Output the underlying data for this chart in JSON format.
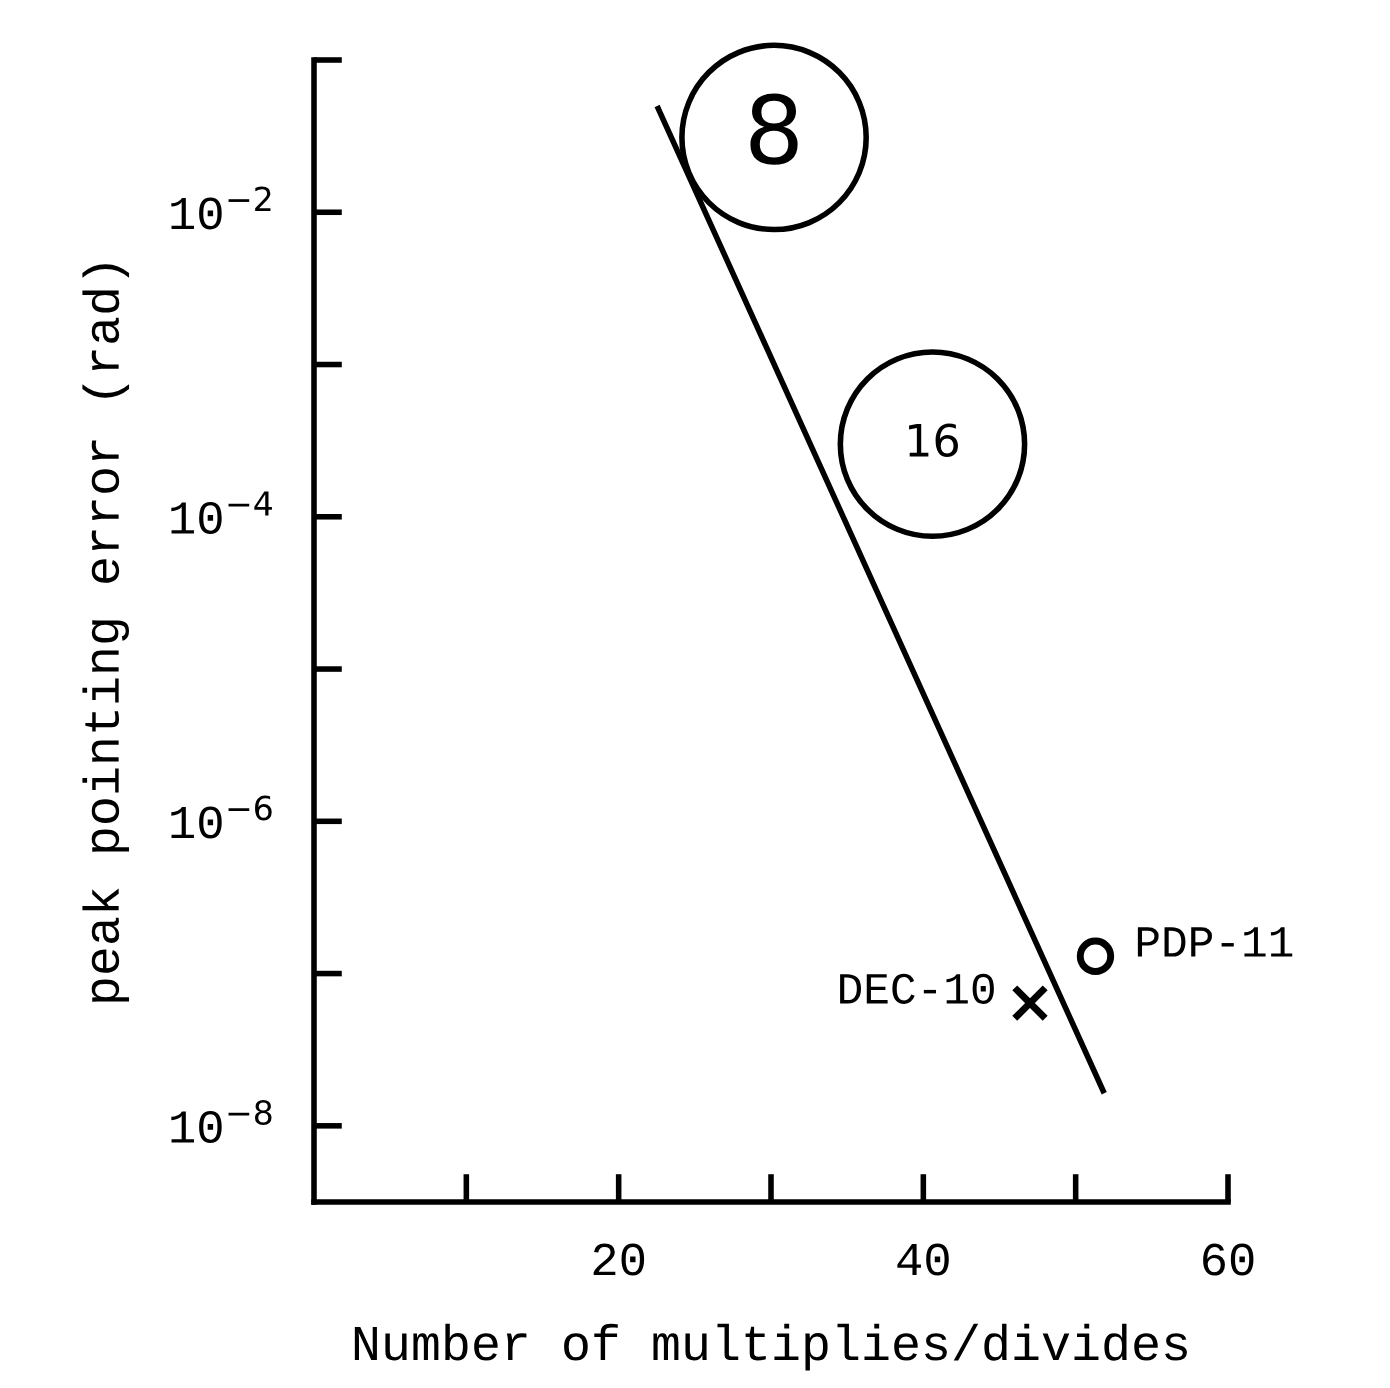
{
  "chart_data": {
    "type": "scatter",
    "xlabel": "Number of multiplies/divides",
    "ylabel": "peak pointing error (rad)",
    "log": "y",
    "grid": false,
    "xlim": [
      0,
      60
    ],
    "ylim": [
      3.16e-09,
      0.1
    ],
    "xticks": [
      {
        "value": 10,
        "label": null
      },
      20,
      {
        "value": 30,
        "label": null
      },
      40,
      {
        "value": 50,
        "label": null
      },
      60
    ],
    "yticks": [
      {
        "value": 0.1,
        "label": null
      },
      {
        "value": 0.01,
        "label": "10$^{−2}$"
      },
      {
        "value": 0.001,
        "label": null
      },
      {
        "value": 0.0001,
        "label": "10$^{−4}$"
      },
      {
        "value": 1e-05,
        "label": null
      },
      {
        "value": 1e-06,
        "label": "10$^{−6}$"
      },
      {
        "value": 1e-07,
        "label": null
      },
      {
        "value": 1e-08,
        "label": "10$^{−8}$"
      }
    ],
    "series": [
      {
        "type": "line",
        "color": "#000000",
        "x": [
          22.6,
          51.8
        ],
        "values": [
          0.048,
          1.7e-08
        ],
        "marker": "none",
        "line_style": "solid"
      },
      {
        "name": "DEC-10",
        "color": "#000000",
        "x": [
          47
        ],
        "values": [
          6.4e-08
        ],
        "marker": "cross"
      },
      {
        "name": "PDP-11",
        "color": "#000000",
        "x": [
          51.3
        ],
        "values": [
          1.3e-07
        ],
        "marker": "circle"
      },
      {
        "type": "bubble",
        "name": "8",
        "color": "#000000",
        "x": [
          30.2
        ],
        "values": [
          0.031
        ],
        "sizes": [
          1
        ],
        "marker": "circle"
      },
      {
        "type": "bubble",
        "name": "16",
        "color": "#000000",
        "x": [
          40.6
        ],
        "values": [
          0.0003
        ],
        "sizes": [
          1
        ],
        "marker": "circle"
      }
    ]
  }
}
